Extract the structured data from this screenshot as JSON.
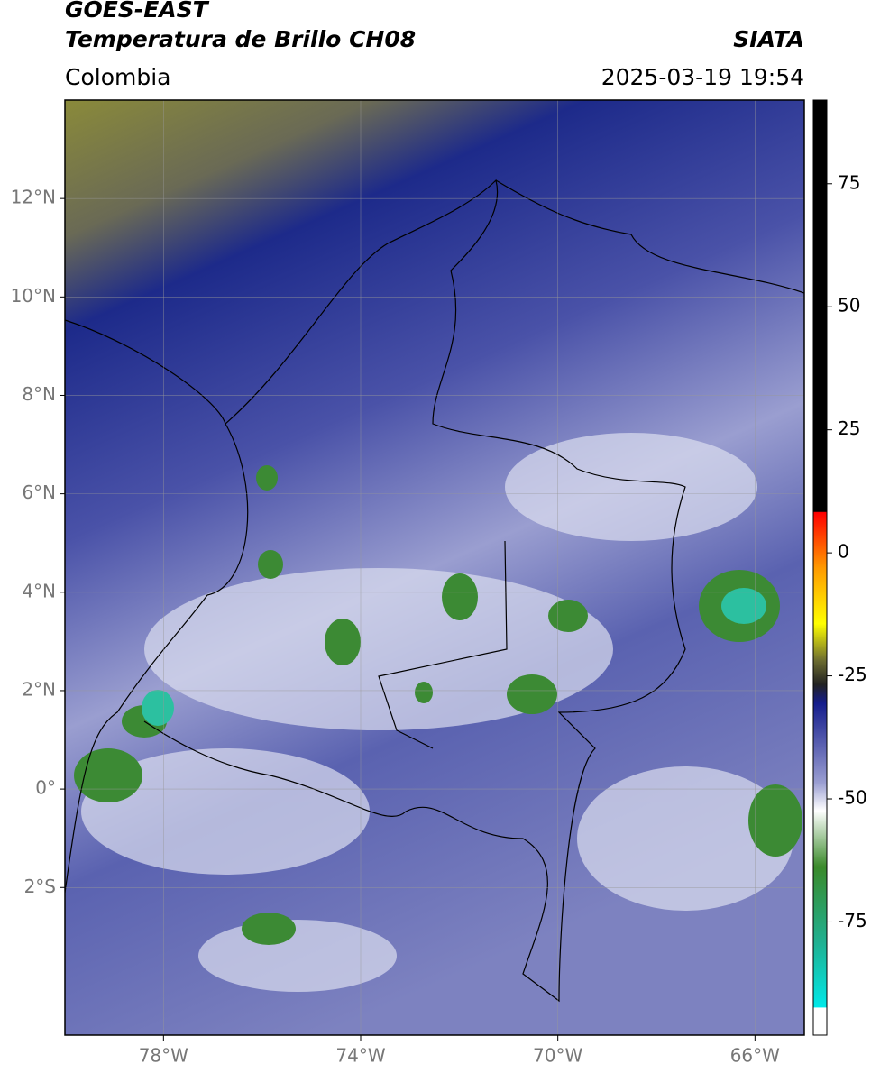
{
  "header": {
    "title": "GOES-EAST",
    "subtitle": "Temperatura de Brillo CH08",
    "region": "Colombia",
    "source": "SIATA",
    "timestamp": "2025-03-19 19:54"
  },
  "map": {
    "lon_range": [
      -80,
      -65
    ],
    "lat_range": [
      -5,
      14
    ],
    "lon_ticks": [
      {
        "value": -78,
        "label": "78°W"
      },
      {
        "value": -74,
        "label": "74°W"
      },
      {
        "value": -70,
        "label": "70°W"
      },
      {
        "value": -66,
        "label": "66°W"
      }
    ],
    "lat_ticks": [
      {
        "value": 12,
        "label": "12°N"
      },
      {
        "value": 10,
        "label": "10°N"
      },
      {
        "value": 8,
        "label": "8°N"
      },
      {
        "value": 6,
        "label": "6°N"
      },
      {
        "value": 4,
        "label": "4°N"
      },
      {
        "value": 2,
        "label": "2°N"
      },
      {
        "value": 0,
        "label": "0°"
      },
      {
        "value": -2,
        "label": "2°S"
      }
    ],
    "grid": true
  },
  "colorbar": {
    "range": [
      -98,
      92
    ],
    "ticks": [
      75,
      50,
      25,
      0,
      -25,
      -50,
      -75
    ]
  }
}
